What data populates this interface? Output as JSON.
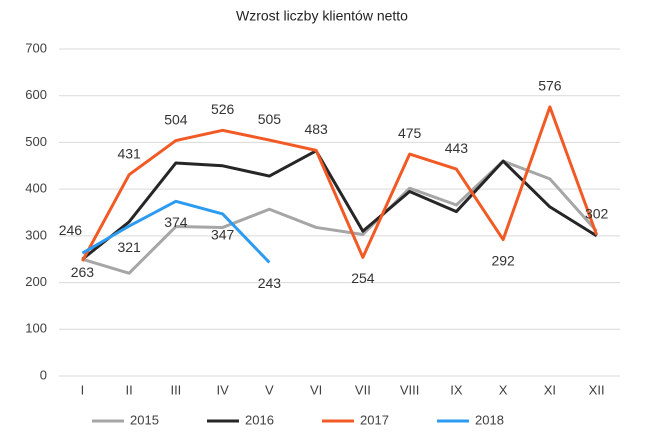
{
  "chart_data": {
    "type": "line",
    "title": "Wzrost liczby klientów netto",
    "categories": [
      "I",
      "II",
      "III",
      "IV",
      "V",
      "VI",
      "VII",
      "VIII",
      "IX",
      "X",
      "XI",
      "XII"
    ],
    "series": [
      {
        "name": "2015",
        "color": "#a6a6a6",
        "values": [
          250,
          220,
          320,
          318,
          357,
          318,
          303,
          402,
          366,
          460,
          422,
          310
        ]
      },
      {
        "name": "2016",
        "color": "#262626",
        "values": [
          250,
          330,
          456,
          450,
          428,
          482,
          310,
          395,
          352,
          460,
          362,
          300
        ]
      },
      {
        "name": "2017",
        "color": "#f15a24",
        "labels": true,
        "values": [
          246,
          431,
          504,
          526,
          505,
          483,
          254,
          475,
          443,
          292,
          576,
          302
        ]
      },
      {
        "name": "2018",
        "color": "#2d9bf0",
        "labels": true,
        "values": [
          263,
          321,
          374,
          347,
          243,
          null,
          null,
          null,
          null,
          null,
          null,
          null
        ]
      }
    ],
    "ylim": [
      0,
      700
    ],
    "yticks": [
      0,
      100,
      200,
      300,
      400,
      500,
      600,
      700
    ],
    "grid": true,
    "legend": "bottom"
  }
}
